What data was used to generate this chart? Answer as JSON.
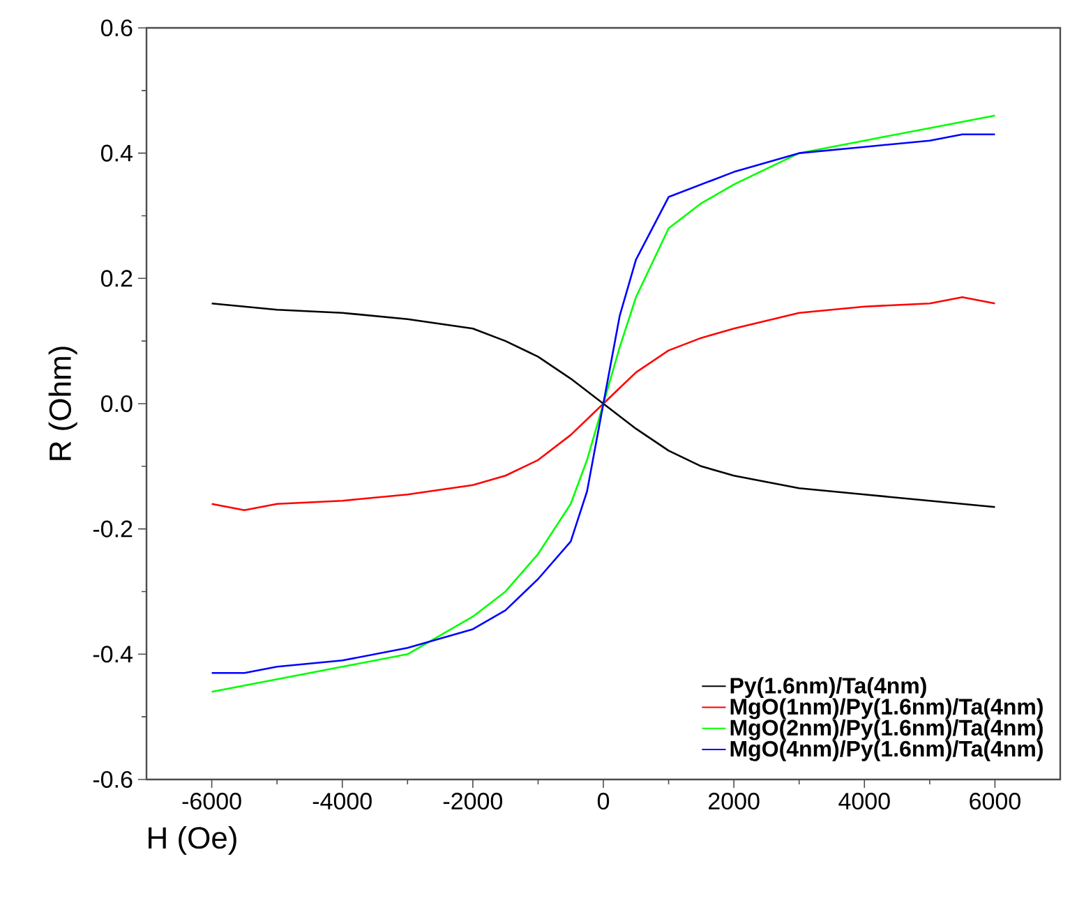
{
  "chart_data": {
    "type": "line",
    "xlabel": "H (Oe)",
    "ylabel": "R (Ohm)",
    "xlim": [
      -7000,
      7000
    ],
    "ylim": [
      -0.6,
      0.6
    ],
    "xticks": [
      -6000,
      -4000,
      -2000,
      0,
      2000,
      4000,
      6000
    ],
    "yticks": [
      {
        "value": -0.6,
        "label": "-0.6"
      },
      {
        "value": -0.4,
        "label": "-0.4"
      },
      {
        "value": -0.2,
        "label": "-0.2"
      },
      {
        "value": 0,
        "label": "0.0"
      },
      0.2,
      0.4,
      0.6
    ],
    "x": [
      -6000,
      -5500,
      -5000,
      -4000,
      -3000,
      -2000,
      -1500,
      -1000,
      -500,
      -250,
      0,
      250,
      500,
      1000,
      1500,
      2000,
      3000,
      4000,
      5000,
      5500,
      6000
    ],
    "series": [
      {
        "name": "Py(1.6nm)/Ta(4nm)",
        "color": "#000000",
        "values": [
          0.16,
          0.155,
          0.15,
          0.145,
          0.135,
          0.12,
          0.1,
          0.075,
          0.04,
          0.02,
          0.0,
          -0.02,
          -0.04,
          -0.075,
          -0.1,
          -0.115,
          -0.135,
          -0.145,
          -0.155,
          -0.16,
          -0.165
        ]
      },
      {
        "name": "MgO(1nm)/Py(1.6nm)/Ta(4nm)",
        "color": "#ff0000",
        "values": [
          -0.16,
          -0.17,
          -0.16,
          -0.155,
          -0.145,
          -0.13,
          -0.115,
          -0.09,
          -0.05,
          -0.025,
          0.0,
          0.025,
          0.05,
          0.085,
          0.105,
          0.12,
          0.145,
          0.155,
          0.16,
          0.17,
          0.16
        ]
      },
      {
        "name": "MgO(2nm)/Py(1.6nm)/Ta(4nm)",
        "color": "#00ff00",
        "values": [
          -0.46,
          -0.45,
          -0.44,
          -0.42,
          -0.4,
          -0.34,
          -0.3,
          -0.24,
          -0.16,
          -0.09,
          0.0,
          0.09,
          0.17,
          0.28,
          0.32,
          0.35,
          0.4,
          0.42,
          0.44,
          0.45,
          0.46
        ]
      },
      {
        "name": "MgO(4nm)/Py(1.6nm)/Ta(4nm)",
        "color": "#0000ff",
        "values": [
          -0.43,
          -0.43,
          -0.42,
          -0.41,
          -0.39,
          -0.36,
          -0.33,
          -0.28,
          -0.22,
          -0.14,
          0.0,
          0.14,
          0.23,
          0.33,
          0.35,
          0.37,
          0.4,
          0.41,
          0.42,
          0.43,
          0.43
        ]
      }
    ],
    "legend": "bottom right",
    "marker": "none",
    "line_style": "solid",
    "grid": false
  }
}
